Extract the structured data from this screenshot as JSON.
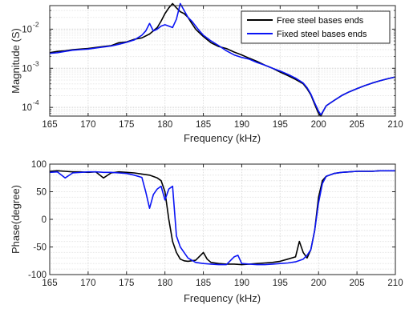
{
  "chart_data": [
    {
      "type": "line",
      "name": "magnitude",
      "xlabel": "Frequency (kHz)",
      "ylabel": "Magnitude (S)",
      "xlim": [
        165,
        210
      ],
      "ylim": [
        6e-05,
        0.04
      ],
      "yscale": "log",
      "grid": true,
      "legend": "top-right",
      "x_ticks": [
        "165",
        "170",
        "175",
        "180",
        "185",
        "190",
        "195",
        "200",
        "205",
        "210"
      ],
      "y_ticks": [
        {
          "value": 0.0001,
          "base": "10",
          "exp": "-4"
        },
        {
          "value": 0.001,
          "base": "10",
          "exp": "-3"
        },
        {
          "value": 0.01,
          "base": "10",
          "exp": "-2"
        }
      ],
      "series": [
        {
          "name": "Free steel bases ends",
          "color": "#000000",
          "x": [
            165,
            166,
            167,
            168,
            169,
            170,
            171,
            172,
            173,
            174,
            175,
            176,
            177,
            178,
            179,
            179.5,
            180,
            180.5,
            181,
            181.5,
            182,
            182.5,
            183,
            183.5,
            184,
            184.5,
            185,
            186,
            187,
            188,
            189,
            190,
            191,
            192,
            193,
            194,
            195,
            196,
            197,
            198,
            198.5,
            199,
            199.5,
            200,
            200.3,
            200.6,
            201,
            202,
            203,
            204,
            205,
            206,
            207,
            208,
            209,
            210
          ],
          "y": [
            0.0025,
            0.0027,
            0.0028,
            0.003,
            0.0031,
            0.0032,
            0.0034,
            0.0036,
            0.0038,
            0.0045,
            0.0047,
            0.0055,
            0.006,
            0.0075,
            0.011,
            0.016,
            0.025,
            0.035,
            0.045,
            0.035,
            0.028,
            0.025,
            0.02,
            0.014,
            0.01,
            0.008,
            0.0065,
            0.0045,
            0.0036,
            0.0032,
            0.0026,
            0.0022,
            0.0018,
            0.0015,
            0.0012,
            0.001,
            0.0008,
            0.00065,
            0.00052,
            0.0004,
            0.0003,
            0.00021,
            0.00012,
            7e-05,
            6e-05,
            8e-05,
            0.00011,
            0.00015,
            0.0002,
            0.00025,
            0.0003,
            0.00036,
            0.00042,
            0.00048,
            0.00054,
            0.0006
          ]
        },
        {
          "name": "Fixed steel bases ends",
          "color": "#0a14f5",
          "x": [
            165,
            166,
            167,
            168,
            169,
            170,
            171,
            172,
            173,
            174,
            175,
            176,
            177,
            177.5,
            178,
            178.5,
            179,
            179.5,
            180,
            180.5,
            181,
            181.5,
            182,
            182.5,
            183,
            183.5,
            184,
            184.5,
            185,
            186,
            187,
            188,
            189,
            190,
            191,
            192,
            193,
            194,
            195,
            196,
            197,
            198,
            198.5,
            199,
            199.5,
            200,
            200.3,
            200.6,
            201,
            202,
            203,
            204,
            205,
            206,
            207,
            208,
            209,
            210
          ],
          "y": [
            0.0024,
            0.0025,
            0.0027,
            0.0029,
            0.003,
            0.0031,
            0.0033,
            0.0035,
            0.0037,
            0.0041,
            0.0046,
            0.0053,
            0.007,
            0.009,
            0.014,
            0.009,
            0.01,
            0.012,
            0.013,
            0.012,
            0.011,
            0.018,
            0.045,
            0.03,
            0.02,
            0.016,
            0.012,
            0.009,
            0.007,
            0.005,
            0.0038,
            0.0028,
            0.0022,
            0.0019,
            0.0017,
            0.0014,
            0.0012,
            0.001,
            0.00085,
            0.0007,
            0.00056,
            0.00042,
            0.00032,
            0.00022,
            0.00013,
            8e-05,
            6.5e-05,
            8e-05,
            0.00011,
            0.00015,
            0.0002,
            0.00025,
            0.0003,
            0.00036,
            0.00042,
            0.00048,
            0.00054,
            0.0006
          ]
        }
      ]
    },
    {
      "type": "line",
      "name": "phase",
      "xlabel": "Frequency (kHz)",
      "ylabel": "Phase(degree)",
      "xlim": [
        165,
        210
      ],
      "ylim": [
        -100,
        100
      ],
      "grid": true,
      "x_ticks": [
        "165",
        "170",
        "175",
        "180",
        "185",
        "190",
        "195",
        "200",
        "205",
        "210"
      ],
      "y_ticks": [
        "100",
        "50",
        "0",
        "-50",
        "-100"
      ],
      "series": [
        {
          "name": "Free steel bases ends",
          "color": "#000000",
          "x": [
            165,
            166,
            167,
            168,
            169,
            170,
            171,
            172,
            173,
            174,
            175,
            176,
            177,
            178,
            179,
            179.5,
            180,
            180.5,
            181,
            181.5,
            182,
            182.5,
            183,
            184,
            185,
            185.5,
            186,
            187,
            188,
            189,
            190,
            191,
            192,
            193,
            194,
            195,
            196,
            197,
            197.5,
            198,
            198.5,
            199,
            199.5,
            200,
            200.5,
            201,
            202,
            203,
            204,
            205,
            206,
            207,
            208,
            209,
            210
          ],
          "y": [
            87,
            88,
            87,
            86,
            86,
            85,
            86,
            75,
            84,
            86,
            85,
            84,
            82,
            80,
            75,
            70,
            50,
            0,
            -40,
            -60,
            -72,
            -75,
            -76,
            -74,
            -60,
            -72,
            -78,
            -80,
            -81,
            -81,
            -82,
            -81,
            -80,
            -79,
            -78,
            -76,
            -72,
            -68,
            -40,
            -60,
            -70,
            -55,
            -20,
            40,
            70,
            78,
            83,
            85,
            86,
            87,
            87,
            87,
            88,
            88,
            88
          ]
        },
        {
          "name": "Fixed steel bases ends",
          "color": "#0a14f5",
          "x": [
            165,
            166,
            167,
            168,
            169,
            170,
            171,
            172,
            173,
            174,
            175,
            176,
            177,
            177.5,
            178,
            178.5,
            179,
            179.5,
            180,
            180.5,
            181,
            181.5,
            182,
            182.5,
            183,
            184,
            185,
            186,
            187,
            188,
            189,
            189.5,
            190,
            191,
            192,
            193,
            194,
            195,
            196,
            197,
            198,
            198.5,
            199,
            199.5,
            200,
            200.5,
            201,
            202,
            203,
            204,
            205,
            206,
            207,
            208,
            209,
            210
          ],
          "y": [
            85,
            86,
            75,
            84,
            85,
            86,
            86,
            85,
            85,
            84,
            83,
            80,
            76,
            50,
            20,
            45,
            55,
            60,
            35,
            55,
            60,
            -30,
            -50,
            -60,
            -70,
            -78,
            -80,
            -81,
            -82,
            -82,
            -68,
            -65,
            -80,
            -81,
            -82,
            -82,
            -81,
            -80,
            -79,
            -77,
            -72,
            -65,
            -55,
            -20,
            30,
            65,
            78,
            83,
            85,
            86,
            87,
            87,
            87,
            88,
            88,
            88
          ]
        }
      ]
    }
  ]
}
